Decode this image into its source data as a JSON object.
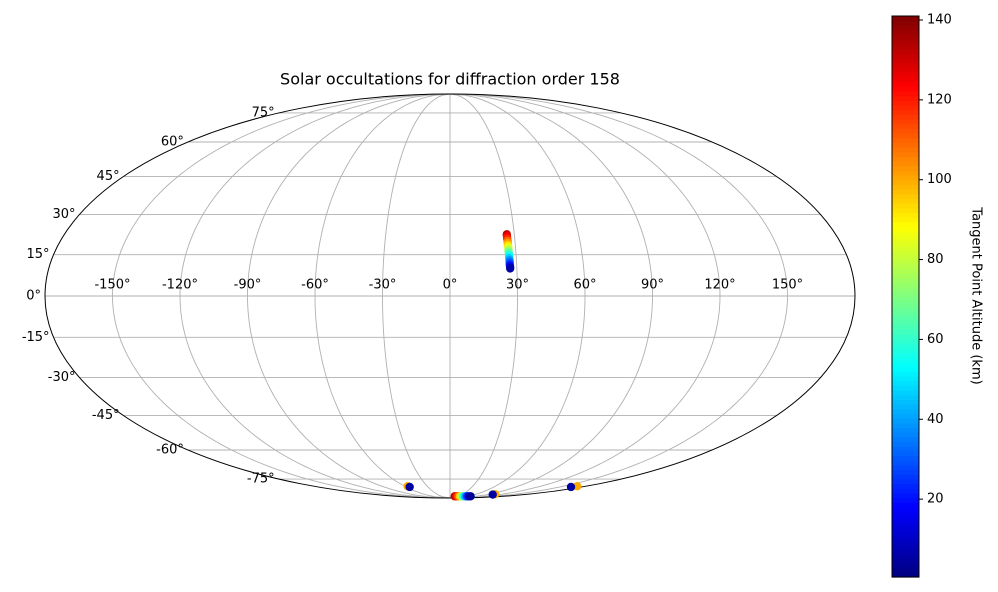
{
  "chart_data": {
    "type": "scatter",
    "projection": "mollweide",
    "title": "Solar occultations for diffraction order 158",
    "x": [
      26.5,
      26.5,
      26.5,
      26.6,
      26.6,
      26.6,
      26.7,
      26.7,
      26.7,
      26.8,
      26.8,
      26.8,
      26.9,
      26.9,
      26.9,
      27.0,
      27.0,
      -56,
      -55,
      16,
      22,
      28,
      34,
      40,
      46,
      52,
      58,
      64,
      70,
      104,
      103,
      168,
      165
    ],
    "y": [
      22.5,
      21.7,
      20.9,
      20.1,
      19.3,
      18.5,
      17.7,
      16.9,
      16.1,
      15.3,
      14.5,
      13.7,
      12.9,
      12.1,
      11.3,
      10.6,
      10.0,
      -79.5,
      -80,
      -87.5,
      -87.5,
      -87.5,
      -87.5,
      -87.5,
      -87.5,
      -87.5,
      -87.5,
      -87.5,
      -87.5,
      -85.5,
      -85.8,
      -79.5,
      -80
    ],
    "color_values": [
      132,
      125,
      118,
      110,
      102,
      94,
      86,
      78,
      70,
      62,
      54,
      46,
      38,
      30,
      22,
      14,
      6,
      100,
      5,
      132,
      122,
      110,
      95,
      78,
      60,
      42,
      26,
      12,
      4,
      100,
      5,
      100,
      5
    ],
    "colormap": "jet",
    "clim": [
      0.5,
      141
    ],
    "cticks": [
      20,
      40,
      60,
      80,
      100,
      120,
      140
    ],
    "colorbar_label": "Tangent Point Altitude (km)",
    "xticks": [
      {
        "value": -150,
        "label": "-150°"
      },
      {
        "value": -120,
        "label": "-120°"
      },
      {
        "value": -90,
        "label": "-90°"
      },
      {
        "value": -60,
        "label": "-60°"
      },
      {
        "value": -30,
        "label": "-30°"
      },
      {
        "value": 0,
        "label": "0°"
      },
      {
        "value": 30,
        "label": "30°"
      },
      {
        "value": 60,
        "label": "60°"
      },
      {
        "value": 90,
        "label": "90°"
      },
      {
        "value": 120,
        "label": "120°"
      },
      {
        "value": 150,
        "label": "150°"
      }
    ],
    "yticks": [
      {
        "value": -75,
        "label": "-75°"
      },
      {
        "value": -60,
        "label": "-60°"
      },
      {
        "value": -45,
        "label": "-45°"
      },
      {
        "value": -30,
        "label": "-30°"
      },
      {
        "value": -15,
        "label": "-15°"
      },
      {
        "value": 0,
        "label": "0°"
      },
      {
        "value": 15,
        "label": "15°"
      },
      {
        "value": 30,
        "label": "30°"
      },
      {
        "value": 45,
        "label": "45°"
      },
      {
        "value": 60,
        "label": "60°"
      },
      {
        "value": 75,
        "label": "75°"
      }
    ],
    "grid": true
  }
}
